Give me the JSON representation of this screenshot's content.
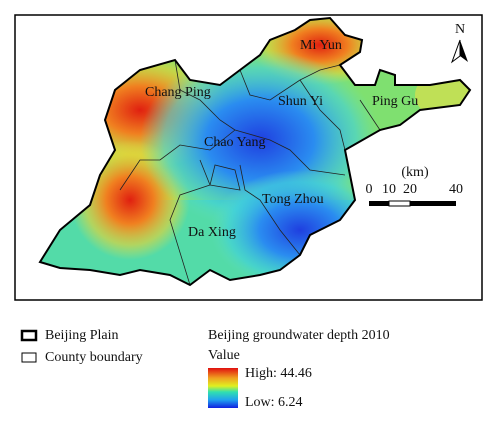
{
  "map": {
    "districts": [
      "Mi Yun",
      "Chang Ping",
      "Shun Yi",
      "Ping Gu",
      "Chao Yang",
      "Tong Zhou",
      "Da Xing"
    ],
    "north": "N",
    "scale": {
      "unit": "(km)",
      "ticks": [
        "0",
        "10",
        "20",
        "40"
      ]
    }
  },
  "legend": {
    "boundaries": [
      "Beijing Plain",
      "County boundary"
    ],
    "title": "Beijing groundwater depth 2010",
    "subtitle": "Value",
    "high": "High: 44.46",
    "low": "Low: 6.24"
  }
}
